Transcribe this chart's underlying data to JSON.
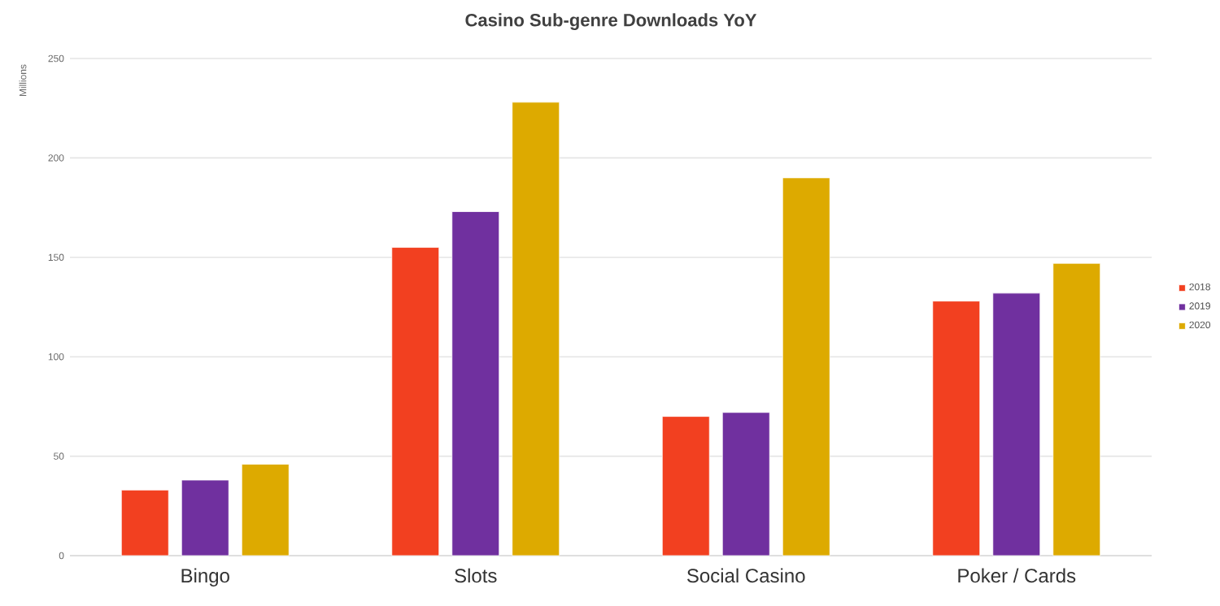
{
  "chart_data": {
    "type": "bar",
    "title": "Casino Sub-genre Downloads YoY",
    "ylabel": "Millions",
    "categories": [
      "Bingo",
      "Slots",
      "Social Casino",
      "Poker / Cards"
    ],
    "series": [
      {
        "name": "2018",
        "color": "#f24020",
        "values": [
          33,
          155,
          70,
          128
        ]
      },
      {
        "name": "2019",
        "color": "#70309f",
        "values": [
          38,
          173,
          72,
          132
        ]
      },
      {
        "name": "2020",
        "color": "#ddaa00",
        "values": [
          46,
          228,
          190,
          147
        ]
      }
    ],
    "ylim": [
      0,
      250
    ],
    "yticks": [
      0,
      50,
      100,
      150,
      200,
      250
    ],
    "grid": "y",
    "legend": "right"
  }
}
